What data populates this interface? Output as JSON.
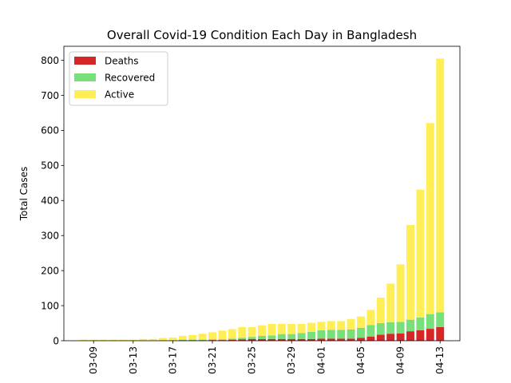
{
  "chart_data": {
    "type": "bar",
    "stacked": true,
    "title": "Overall Covid-19 Condition Each Day in Bangladesh",
    "xlabel": "",
    "ylabel": "Total Cases",
    "ylim": [
      0,
      840
    ],
    "yticks": [
      0,
      100,
      200,
      300,
      400,
      500,
      600,
      700,
      800
    ],
    "xlim": [
      "2020-03-06",
      "2020-04-15"
    ],
    "categories": [
      "2020-03-08",
      "2020-03-09",
      "2020-03-10",
      "2020-03-11",
      "2020-03-12",
      "2020-03-13",
      "2020-03-14",
      "2020-03-15",
      "2020-03-16",
      "2020-03-17",
      "2020-03-18",
      "2020-03-19",
      "2020-03-20",
      "2020-03-21",
      "2020-03-22",
      "2020-03-23",
      "2020-03-24",
      "2020-03-25",
      "2020-03-26",
      "2020-03-27",
      "2020-03-28",
      "2020-03-29",
      "2020-03-30",
      "2020-03-31",
      "2020-04-01",
      "2020-04-02",
      "2020-04-03",
      "2020-04-04",
      "2020-04-05",
      "2020-04-06",
      "2020-04-07",
      "2020-04-08",
      "2020-04-09",
      "2020-04-10",
      "2020-04-11",
      "2020-04-12",
      "2020-04-13"
    ],
    "xticks": [
      "03-09",
      "03-13",
      "03-17",
      "03-21",
      "03-25",
      "03-29",
      "04-01",
      "04-05",
      "04-09",
      "04-13"
    ],
    "xtick_dates": [
      "2020-03-09",
      "2020-03-13",
      "2020-03-17",
      "2020-03-21",
      "2020-03-25",
      "2020-03-29",
      "2020-04-01",
      "2020-04-05",
      "2020-04-09",
      "2020-04-13"
    ],
    "series": [
      {
        "name": "Deaths",
        "color": "#d62728",
        "values": [
          0,
          0,
          0,
          0,
          0,
          0,
          0,
          0,
          0,
          0,
          1,
          1,
          1,
          2,
          2,
          3,
          4,
          5,
          5,
          5,
          5,
          5,
          5,
          5,
          6,
          6,
          6,
          6,
          8,
          12,
          17,
          20,
          21,
          27,
          30,
          34,
          39
        ]
      },
      {
        "name": "Recovered",
        "color": "#77e07a",
        "values": [
          0,
          0,
          0,
          0,
          0,
          0,
          0,
          0,
          1,
          1,
          2,
          2,
          2,
          2,
          2,
          3,
          4,
          6,
          9,
          10,
          14,
          14,
          17,
          20,
          24,
          25,
          25,
          26,
          29,
          33,
          33,
          33,
          33,
          33,
          36,
          42,
          42
        ]
      },
      {
        "name": "Active",
        "color": "#ffee55",
        "values": [
          3,
          3,
          3,
          3,
          3,
          3,
          5,
          5,
          7,
          8,
          11,
          13,
          17,
          20,
          25,
          27,
          31,
          28,
          30,
          33,
          29,
          29,
          26,
          26,
          24,
          25,
          25,
          30,
          32,
          43,
          73,
          110,
          164,
          270,
          365,
          545,
          724
        ]
      }
    ],
    "legend": {
      "position": "top-left",
      "entries": [
        "Deaths",
        "Recovered",
        "Active"
      ]
    },
    "grid": false
  }
}
